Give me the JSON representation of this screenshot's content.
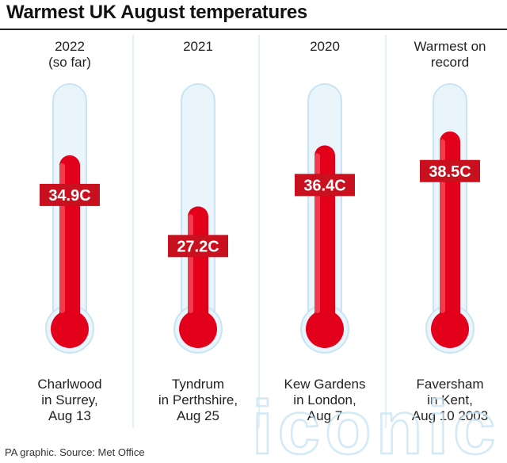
{
  "title": "Warmest UK August temperatures",
  "source": "PA graphic. Source: Met Office",
  "watermark_text": "iconic",
  "colors": {
    "accent_red": "#e2001a",
    "label_red": "#c8101e",
    "tube_fill": "#e9f4fb",
    "tube_stroke": "#c9e4f4",
    "column_divider": "#d8ecf7"
  },
  "chart_data": {
    "type": "bar",
    "title": "Warmest UK August temperatures",
    "unit": "C",
    "categories": [
      "2022 (so far)",
      "2021",
      "2020",
      "Warmest on record"
    ],
    "values": [
      34.9,
      27.2,
      36.4,
      38.5
    ],
    "value_labels": [
      "34.9C",
      "27.2C",
      "36.4C",
      "38.5C"
    ],
    "headers": [
      [
        "2022",
        "(so far)"
      ],
      [
        "2021"
      ],
      [
        "2020"
      ],
      [
        "Warmest on",
        "record"
      ]
    ],
    "locations": [
      [
        "Charlwood",
        "in Surrey,",
        "Aug 13"
      ],
      [
        "Tyndrum",
        "in Perthshire,",
        "Aug 25"
      ],
      [
        "Kew Gardens",
        "in London,",
        "Aug 7"
      ],
      [
        "Faversham",
        "in Kent,",
        "Aug 10 2003"
      ]
    ]
  }
}
